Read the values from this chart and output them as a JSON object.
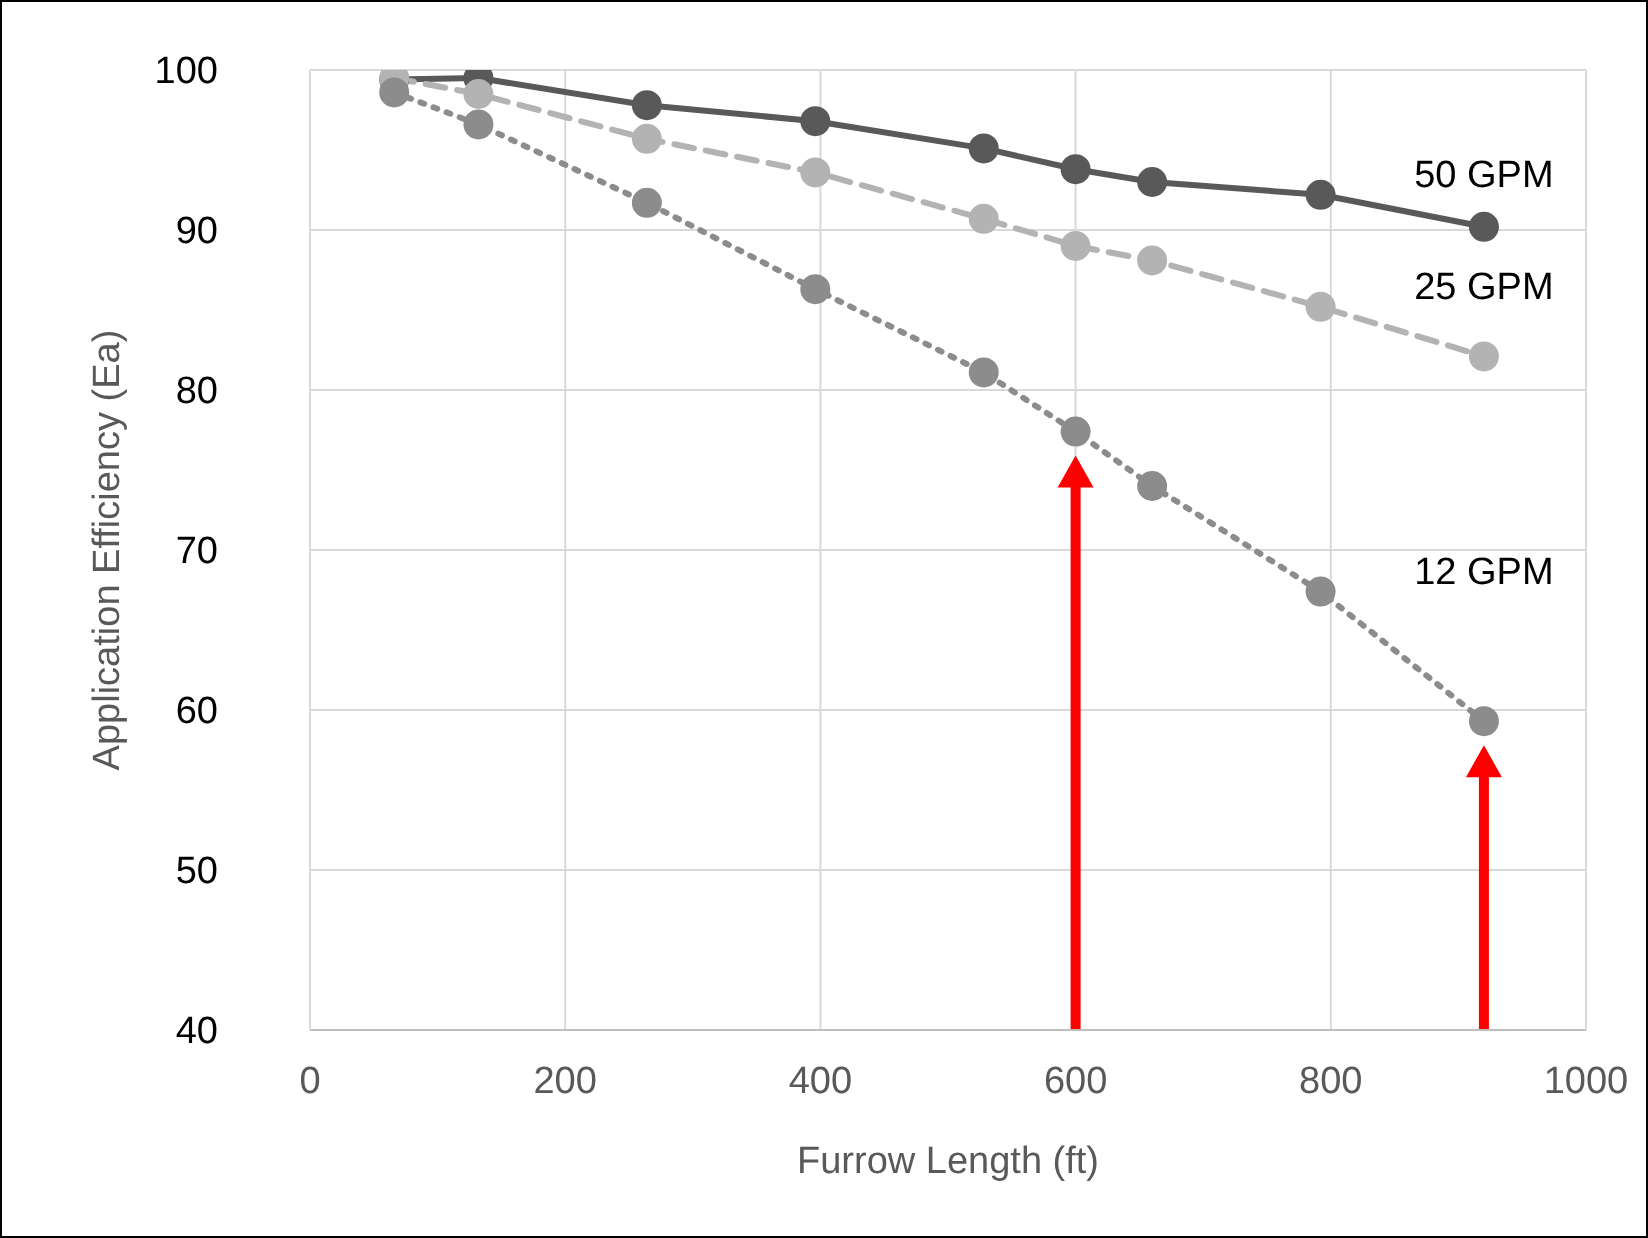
{
  "chart_data": {
    "type": "line",
    "xlabel": "Furrow Length (ft)",
    "ylabel": "Application Efficiency (Ea)",
    "x": [
      66,
      132,
      264,
      396,
      528,
      600,
      660,
      792,
      920
    ],
    "series": [
      {
        "name": "50 GPM",
        "color": "#595959",
        "line_style": "solid",
        "values": [
          99.4,
          99.5,
          97.8,
          96.8,
          95.1,
          93.8,
          93.0,
          92.2,
          90.2
        ]
      },
      {
        "name": "25 GPM",
        "color": "#b3b3b3",
        "line_style": "dashed",
        "values": [
          99.5,
          98.5,
          95.7,
          93.6,
          90.7,
          89.0,
          88.1,
          85.2,
          82.1
        ]
      },
      {
        "name": "12 GPM",
        "color": "#8c8c8c",
        "line_style": "dotted",
        "values": [
          98.6,
          96.6,
          91.7,
          86.3,
          81.1,
          77.4,
          74.0,
          67.4,
          59.3
        ]
      }
    ],
    "ref_lines": [
      {
        "axis": "x",
        "value": 600,
        "color": "#ff0000"
      },
      {
        "axis": "x",
        "value": 920,
        "color": "#ff0000"
      }
    ],
    "xlim": [
      0,
      1000
    ],
    "xticks": [
      0,
      200,
      400,
      600,
      800,
      1000
    ],
    "ylim": [
      40,
      100
    ],
    "yticks": [
      40,
      50,
      60,
      70,
      80,
      90,
      100
    ],
    "grid": true,
    "legend": false,
    "marker": "circle"
  }
}
